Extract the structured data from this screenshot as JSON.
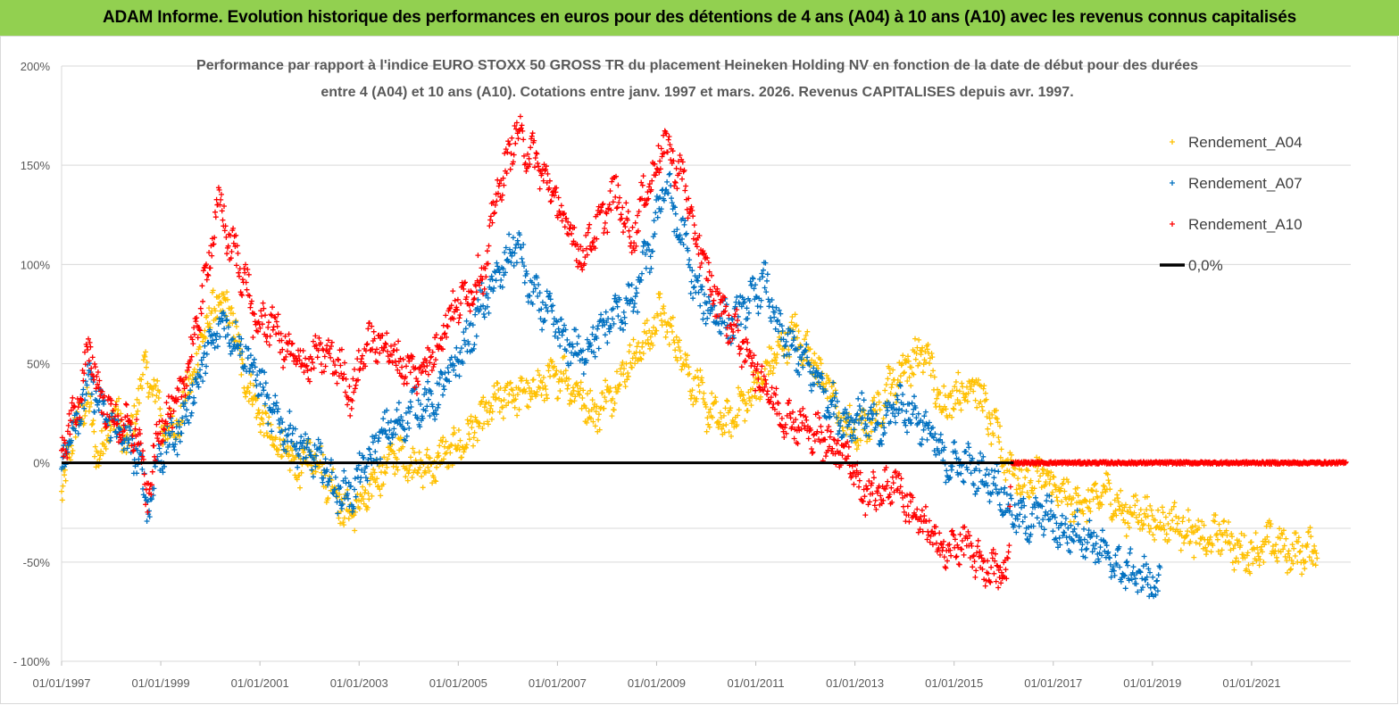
{
  "banner": {
    "title": "ADAM Informe. Evolution historique des performances en euros pour des détentions de 4 ans (A04) à 10 ans (A10) avec les revenus connus capitalisés",
    "color": "#92d050"
  },
  "chart_data": {
    "type": "scatter",
    "title_line1": "Performance par rapport à l'indice EURO STOXX 50 GROSS TR  du placement Heineken Holding NV en fonction de la date de début pour des durées",
    "title_line2": "entre 4 (A04) et 10 ans (A10).  Cotations entre janv. 1997 et mars. 2026. Revenus CAPITALISES depuis avr. 1997.",
    "xlabel": "",
    "ylabel": "",
    "x_ticks": [
      "01/01/1997",
      "01/01/1999",
      "01/01/2001",
      "01/01/2003",
      "01/01/2005",
      "01/01/2007",
      "01/01/2009",
      "01/01/2011",
      "01/01/2013",
      "01/01/2015",
      "01/01/2017",
      "01/01/2019",
      "01/01/2021"
    ],
    "xlim": [
      "01/01/1997",
      "01/01/2023"
    ],
    "y_ticks": [
      "200%",
      "150%",
      "100%",
      "50%",
      "0%",
      "-50%",
      "- 100%"
    ],
    "ylim": [
      -100,
      200
    ],
    "y_unit": "%",
    "grid": "horizontal",
    "legend_position": "top-right",
    "series": [
      {
        "name": "Rendement_A04",
        "color": "#ffc000",
        "marker": "+",
        "points": [
          [
            "1997-01",
            -20
          ],
          [
            "1997-03",
            10
          ],
          [
            "1997-07",
            30
          ],
          [
            "1997-10",
            5
          ],
          [
            "1998-02",
            25
          ],
          [
            "1998-05",
            10
          ],
          [
            "1998-09",
            45
          ],
          [
            "1998-12",
            35
          ],
          [
            "1999-02",
            15
          ],
          [
            "1999-05",
            20
          ],
          [
            "1999-09",
            45
          ],
          [
            "1999-12",
            70
          ],
          [
            "2000-03",
            80
          ],
          [
            "2000-06",
            75
          ],
          [
            "2000-09",
            45
          ],
          [
            "2000-12",
            30
          ],
          [
            "2001-03",
            15
          ],
          [
            "2001-06",
            8
          ],
          [
            "2001-10",
            -2
          ],
          [
            "2002-02",
            5
          ],
          [
            "2002-06",
            -10
          ],
          [
            "2002-10",
            -25
          ],
          [
            "2003-02",
            -20
          ],
          [
            "2003-06",
            -5
          ],
          [
            "2003-10",
            5
          ],
          [
            "2004-02",
            0
          ],
          [
            "2004-06",
            -3
          ],
          [
            "2004-10",
            5
          ],
          [
            "2005-02",
            10
          ],
          [
            "2005-06",
            20
          ],
          [
            "2005-10",
            30
          ],
          [
            "2006-02",
            35
          ],
          [
            "2006-06",
            35
          ],
          [
            "2006-10",
            40
          ],
          [
            "2007-02",
            45
          ],
          [
            "2007-06",
            35
          ],
          [
            "2007-10",
            25
          ],
          [
            "2008-02",
            35
          ],
          [
            "2008-06",
            50
          ],
          [
            "2008-10",
            60
          ],
          [
            "2009-02",
            75
          ],
          [
            "2009-06",
            60
          ],
          [
            "2009-10",
            40
          ],
          [
            "2010-02",
            25
          ],
          [
            "2010-06",
            20
          ],
          [
            "2010-10",
            30
          ],
          [
            "2011-02",
            40
          ],
          [
            "2011-06",
            55
          ],
          [
            "2011-10",
            65
          ],
          [
            "2012-02",
            55
          ],
          [
            "2012-06",
            40
          ],
          [
            "2012-10",
            20
          ],
          [
            "2013-02",
            15
          ],
          [
            "2013-06",
            25
          ],
          [
            "2013-10",
            40
          ],
          [
            "2014-02",
            50
          ],
          [
            "2014-06",
            55
          ],
          [
            "2014-10",
            30
          ],
          [
            "2015-02",
            35
          ],
          [
            "2015-06",
            40
          ],
          [
            "2015-10",
            20
          ],
          [
            "2016-02",
            0
          ],
          [
            "2016-06",
            -10
          ],
          [
            "2016-10",
            -5
          ],
          [
            "2017-02",
            -15
          ],
          [
            "2017-06",
            -20
          ],
          [
            "2017-10",
            -20
          ],
          [
            "2018-02",
            -15
          ],
          [
            "2018-06",
            -25
          ],
          [
            "2018-10",
            -25
          ],
          [
            "2019-02",
            -30
          ],
          [
            "2019-06",
            -30
          ],
          [
            "2019-10",
            -35
          ],
          [
            "2020-02",
            -40
          ],
          [
            "2020-06",
            -35
          ],
          [
            "2020-10",
            -45
          ],
          [
            "2021-02",
            -45
          ],
          [
            "2021-06",
            -40
          ],
          [
            "2021-10",
            -45
          ],
          [
            "2022-02",
            -45
          ],
          [
            "2022-05",
            -42
          ]
        ]
      },
      {
        "name": "Rendement_A07",
        "color": "#0070c0",
        "marker": "+",
        "points": [
          [
            "1997-01",
            0
          ],
          [
            "1997-04",
            20
          ],
          [
            "1997-08",
            40
          ],
          [
            "1997-11",
            25
          ],
          [
            "1998-03",
            15
          ],
          [
            "1998-07",
            5
          ],
          [
            "1998-10",
            -20
          ],
          [
            "1999-01",
            5
          ],
          [
            "1999-05",
            15
          ],
          [
            "1999-09",
            35
          ],
          [
            "1999-12",
            55
          ],
          [
            "2000-04",
            70
          ],
          [
            "2000-08",
            60
          ],
          [
            "2000-12",
            45
          ],
          [
            "2001-04",
            25
          ],
          [
            "2001-08",
            15
          ],
          [
            "2001-12",
            5
          ],
          [
            "2002-04",
            0
          ],
          [
            "2002-08",
            -15
          ],
          [
            "2002-11",
            -15
          ],
          [
            "2003-03",
            0
          ],
          [
            "2003-07",
            15
          ],
          [
            "2003-11",
            20
          ],
          [
            "2004-03",
            30
          ],
          [
            "2004-07",
            30
          ],
          [
            "2004-11",
            45
          ],
          [
            "2005-03",
            60
          ],
          [
            "2005-07",
            80
          ],
          [
            "2005-11",
            95
          ],
          [
            "2006-03",
            110
          ],
          [
            "2006-07",
            85
          ],
          [
            "2006-11",
            75
          ],
          [
            "2007-03",
            60
          ],
          [
            "2007-07",
            55
          ],
          [
            "2007-11",
            65
          ],
          [
            "2008-03",
            75
          ],
          [
            "2008-07",
            80
          ],
          [
            "2008-11",
            105
          ],
          [
            "2009-03",
            140
          ],
          [
            "2009-07",
            115
          ],
          [
            "2009-11",
            85
          ],
          [
            "2010-03",
            75
          ],
          [
            "2010-07",
            70
          ],
          [
            "2010-11",
            80
          ],
          [
            "2011-03",
            90
          ],
          [
            "2011-07",
            65
          ],
          [
            "2011-11",
            55
          ],
          [
            "2012-03",
            45
          ],
          [
            "2012-07",
            30
          ],
          [
            "2012-11",
            20
          ],
          [
            "2013-03",
            25
          ],
          [
            "2013-07",
            15
          ],
          [
            "2013-11",
            30
          ],
          [
            "2014-03",
            25
          ],
          [
            "2014-07",
            15
          ],
          [
            "2014-11",
            0
          ],
          [
            "2015-03",
            0
          ],
          [
            "2015-07",
            -5
          ],
          [
            "2015-11",
            -10
          ],
          [
            "2016-03",
            -25
          ],
          [
            "2016-07",
            -30
          ],
          [
            "2016-11",
            -25
          ],
          [
            "2017-03",
            -35
          ],
          [
            "2017-07",
            -35
          ],
          [
            "2017-11",
            -40
          ],
          [
            "2018-03",
            -50
          ],
          [
            "2018-07",
            -55
          ],
          [
            "2018-11",
            -58
          ],
          [
            "2019-03",
            -62
          ]
        ]
      },
      {
        "name": "Rendement_A10",
        "color": "#ff0000",
        "marker": "+",
        "points": [
          [
            "1997-01",
            5
          ],
          [
            "1997-04",
            25
          ],
          [
            "1997-08",
            55
          ],
          [
            "1997-11",
            30
          ],
          [
            "1998-03",
            20
          ],
          [
            "1998-07",
            15
          ],
          [
            "1998-10",
            -15
          ],
          [
            "1999-01",
            20
          ],
          [
            "1999-05",
            30
          ],
          [
            "1999-09",
            60
          ],
          [
            "1999-12",
            95
          ],
          [
            "2000-03",
            130
          ],
          [
            "2000-06",
            110
          ],
          [
            "2000-09",
            95
          ],
          [
            "2000-12",
            70
          ],
          [
            "2001-04",
            70
          ],
          [
            "2001-08",
            55
          ],
          [
            "2001-12",
            50
          ],
          [
            "2002-04",
            55
          ],
          [
            "2002-08",
            50
          ],
          [
            "2002-11",
            35
          ],
          [
            "2003-03",
            60
          ],
          [
            "2003-07",
            60
          ],
          [
            "2003-11",
            50
          ],
          [
            "2004-03",
            45
          ],
          [
            "2004-07",
            55
          ],
          [
            "2004-11",
            75
          ],
          [
            "2005-03",
            85
          ],
          [
            "2005-07",
            95
          ],
          [
            "2005-11",
            140
          ],
          [
            "2006-03",
            165
          ],
          [
            "2006-07",
            155
          ],
          [
            "2006-11",
            140
          ],
          [
            "2007-03",
            120
          ],
          [
            "2007-07",
            105
          ],
          [
            "2007-11",
            120
          ],
          [
            "2008-03",
            135
          ],
          [
            "2008-07",
            115
          ],
          [
            "2008-11",
            140
          ],
          [
            "2009-03",
            160
          ],
          [
            "2009-07",
            145
          ],
          [
            "2009-11",
            110
          ],
          [
            "2010-03",
            85
          ],
          [
            "2010-07",
            70
          ],
          [
            "2010-11",
            55
          ],
          [
            "2011-03",
            40
          ],
          [
            "2011-07",
            25
          ],
          [
            "2011-11",
            20
          ],
          [
            "2012-03",
            15
          ],
          [
            "2012-07",
            10
          ],
          [
            "2012-11",
            5
          ],
          [
            "2013-03",
            -15
          ],
          [
            "2013-07",
            -15
          ],
          [
            "2013-11",
            -10
          ],
          [
            "2014-03",
            -25
          ],
          [
            "2014-07",
            -35
          ],
          [
            "2014-11",
            -45
          ],
          [
            "2015-03",
            -40
          ],
          [
            "2015-07",
            -50
          ],
          [
            "2015-11",
            -55
          ],
          [
            "2016-02",
            -55
          ],
          [
            "2016-03",
            0
          ],
          [
            "2017-03",
            0
          ],
          [
            "2018-03",
            0
          ],
          [
            "2019-03",
            0
          ],
          [
            "2020-03",
            0
          ],
          [
            "2021-03",
            0
          ],
          [
            "2022-03",
            0
          ],
          [
            "2022-12",
            0
          ]
        ]
      },
      {
        "name": "0,0%",
        "color": "#000000",
        "type": "line",
        "points": [
          [
            "1997-01",
            0
          ],
          [
            "2022-12",
            0
          ]
        ]
      }
    ]
  }
}
